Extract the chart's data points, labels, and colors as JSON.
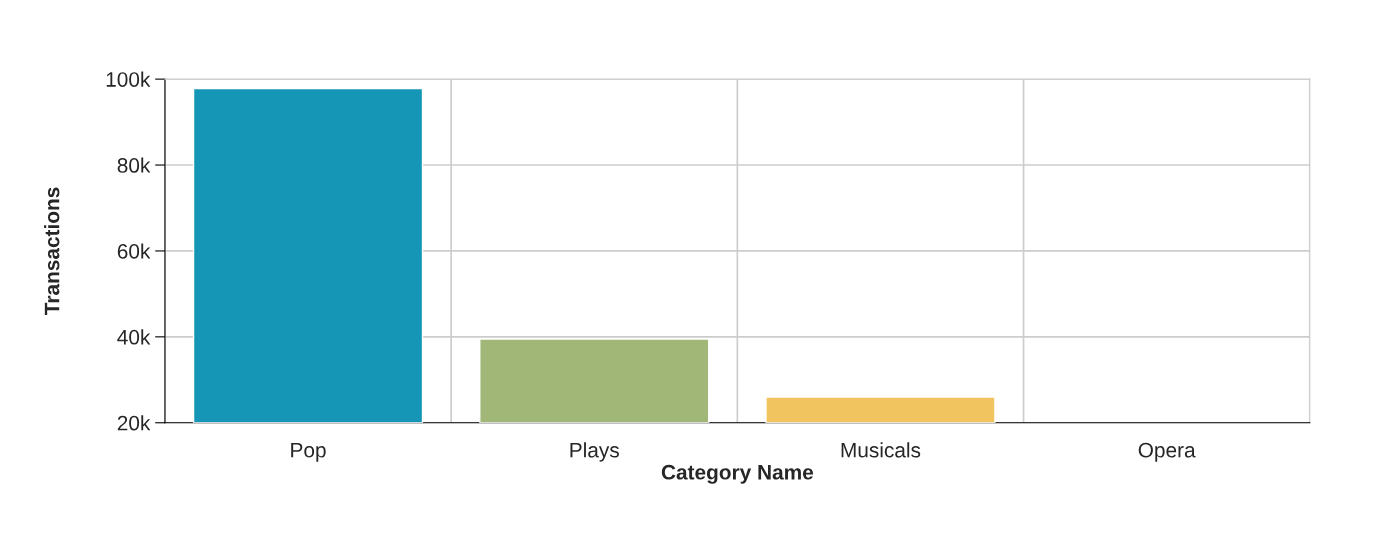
{
  "chart_data": {
    "type": "bar",
    "xlabel": "Category Name",
    "ylabel": "Transactions",
    "categories": [
      "Pop",
      "Plays",
      "Musicals",
      "Opera"
    ],
    "values": [
      97800,
      39500,
      26000,
      null
    ],
    "colors": [
      "#1696b6",
      "#a1b778",
      "#f2c45f",
      "#e0685b"
    ],
    "ylim": [
      20000,
      100000
    ],
    "yticks": [
      {
        "value": 20000,
        "label": "20k"
      },
      {
        "value": 40000,
        "label": "40k"
      },
      {
        "value": 60000,
        "label": "60k"
      },
      {
        "value": 80000,
        "label": "80k"
      },
      {
        "value": 100000,
        "label": "100k"
      }
    ],
    "grid": true,
    "legend": false
  }
}
